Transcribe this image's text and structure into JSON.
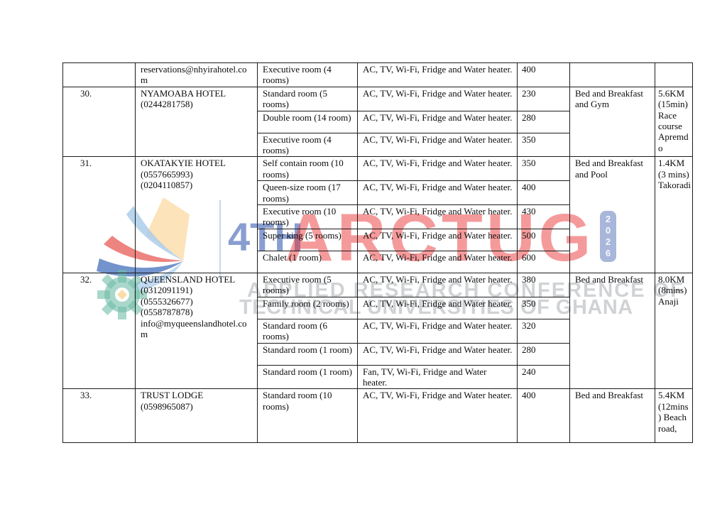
{
  "watermark": {
    "edition": "4TH",
    "acronym": "ARCTUG",
    "year": "2026",
    "line1": "APPLIED RESEARCH CONFERENCE OF",
    "line2": "TECHNICAL UNIVERSITIES OF GHANA",
    "colors": {
      "red": "#EC2D30",
      "blue": "#4264B4",
      "box_blue": "#627CBC",
      "light_blue": "#BDD7EE",
      "swoosh_light_blue": "#A6CBE9",
      "swoosh_red": "#E8625C",
      "swoosh_dark_blue": "#4A74BE",
      "kite_yellow": "#FBD9A1",
      "gear_teal": "#6FBCA6",
      "gray": "#8C9298"
    }
  },
  "table": {
    "groups": [
      {
        "number": "",
        "name_lines": [
          "reservations@nhyirahotel.com"
        ],
        "rooms": [
          {
            "room": "Executive room (4 rooms)",
            "amenities": "AC, TV, Wi-Fi, Fridge and Water heater.",
            "price": "400"
          }
        ],
        "services": "",
        "distance": ""
      },
      {
        "number": "30.",
        "name_lines": [
          "NYAMOABA HOTEL",
          "(0244281758)"
        ],
        "rooms": [
          {
            "room": "Standard room (5 rooms)",
            "amenities": "AC, TV, Wi-Fi, Fridge and Water heater.",
            "price": "230"
          },
          {
            "room": "Double room (14 room)",
            "amenities": "AC, TV, Wi-Fi, Fridge and Water heater.",
            "price": "280"
          },
          {
            "room": "Executive room (4 rooms)",
            "amenities": "AC, TV, Wi-Fi, Fridge and Water heater.",
            "price": "350"
          }
        ],
        "services": "Bed and Breakfast and Gym",
        "distance": "5.6KM (15min) Race course Apremdo"
      },
      {
        "number": "31.",
        "name_lines": [
          "OKATAKYIE HOTEL",
          "(0557665993)",
          "(0204110857)"
        ],
        "rooms": [
          {
            "room": "Self contain room (10 rooms)",
            "amenities": "AC, TV, Wi-Fi, Fridge and Water heater.",
            "price": "350"
          },
          {
            "room": "Queen-size room (17 rooms)",
            "amenities": "AC, TV, Wi-Fi, Fridge and Water heater.",
            "price": "400"
          },
          {
            "room": "Executive room (10 rooms)",
            "amenities": "AC, TV, Wi-Fi, Fridge and Water heater.",
            "price": "430"
          },
          {
            "room": "Super king (5 rooms)",
            "amenities": "AC, TV, Wi-Fi, Fridge and Water heater.",
            "price": "500"
          },
          {
            "room": "Chalet (1 room)",
            "amenities": "AC, TV, Wi-Fi, Fridge and Water heater.",
            "price": "600"
          }
        ],
        "services": "Bed and Breakfast and Pool",
        "distance": "1.4KM (3 mins) Takoradi"
      },
      {
        "number": "32.",
        "name_lines": [
          "QUEENSLAND HOTEL",
          "(0312091191)",
          "(0555326677)",
          "(0558787878)",
          "info@myqueenslandhotel.com"
        ],
        "rooms": [
          {
            "room": "Executive room (5 rooms)",
            "amenities": "AC, TV, Wi-Fi, Fridge and Water heater.",
            "price": "380"
          },
          {
            "room": "Family room (2 rooms)",
            "amenities": "AC, TV, Wi-Fi, Fridge and Water heater.",
            "price": "350"
          },
          {
            "room": "Standard room (6 rooms)",
            "amenities": "AC, TV, Wi-Fi, Fridge and Water heater.",
            "price": "320"
          },
          {
            "room": "Standard room (1 room)",
            "amenities": "AC, TV, Wi-Fi, Fridge and Water heater.",
            "price": "280"
          },
          {
            "room": "Standard room (1 room)",
            "amenities": "Fan, TV, Wi-Fi, Fridge and Water heater.",
            "price": "240"
          }
        ],
        "services": "Bed and Breakfast",
        "distance": "8.0KM (8mins) Anaji"
      },
      {
        "number": "33.",
        "name_lines": [
          "TRUST LODGE",
          "(0598965087)"
        ],
        "rooms": [
          {
            "room": "Standard room (10 rooms)",
            "amenities": "AC, TV, Wi-Fi, Fridge and Water heater.",
            "price": "400"
          }
        ],
        "services": "Bed and Breakfast",
        "distance": "5.4KM (12mins) Beach road,"
      }
    ]
  }
}
